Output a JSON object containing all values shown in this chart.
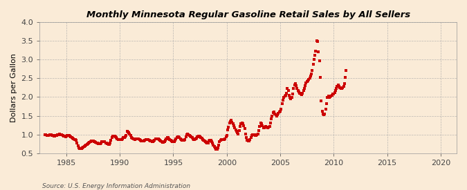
{
  "title": "Monthly Minnesota Regular Gasoline Retail Sales by All Sellers",
  "ylabel": "Dollars per Gallon",
  "source": "Source: U.S. Energy Information Administration",
  "background_color": "#faebd7",
  "dot_color": "#cc0000",
  "xlim": [
    1982.5,
    2021.5
  ],
  "ylim": [
    0.5,
    4.0
  ],
  "xticks": [
    1985,
    1990,
    1995,
    2000,
    2005,
    2010,
    2015,
    2020
  ],
  "yticks": [
    0.5,
    1.0,
    1.5,
    2.0,
    2.5,
    3.0,
    3.5,
    4.0
  ],
  "data": [
    [
      1983.0,
      1.0
    ],
    [
      1983.08,
      1.0
    ],
    [
      1983.17,
      0.98
    ],
    [
      1983.25,
      0.97
    ],
    [
      1983.33,
      0.97
    ],
    [
      1983.42,
      0.99
    ],
    [
      1983.5,
      1.0
    ],
    [
      1983.58,
      0.99
    ],
    [
      1983.67,
      0.98
    ],
    [
      1983.75,
      0.97
    ],
    [
      1983.83,
      0.96
    ],
    [
      1983.92,
      0.96
    ],
    [
      1984.0,
      0.97
    ],
    [
      1984.08,
      0.98
    ],
    [
      1984.17,
      0.99
    ],
    [
      1984.25,
      1.0
    ],
    [
      1984.33,
      1.01
    ],
    [
      1984.42,
      1.0
    ],
    [
      1984.5,
      0.99
    ],
    [
      1984.58,
      0.99
    ],
    [
      1984.67,
      0.97
    ],
    [
      1984.75,
      0.96
    ],
    [
      1984.83,
      0.95
    ],
    [
      1984.92,
      0.94
    ],
    [
      1985.0,
      0.95
    ],
    [
      1985.08,
      0.97
    ],
    [
      1985.17,
      0.98
    ],
    [
      1985.25,
      0.97
    ],
    [
      1985.33,
      0.96
    ],
    [
      1985.42,
      0.94
    ],
    [
      1985.5,
      0.92
    ],
    [
      1985.58,
      0.9
    ],
    [
      1985.67,
      0.88
    ],
    [
      1985.75,
      0.87
    ],
    [
      1985.83,
      0.86
    ],
    [
      1985.92,
      0.84
    ],
    [
      1986.0,
      0.78
    ],
    [
      1986.08,
      0.7
    ],
    [
      1986.17,
      0.65
    ],
    [
      1986.25,
      0.63
    ],
    [
      1986.33,
      0.62
    ],
    [
      1986.42,
      0.63
    ],
    [
      1986.5,
      0.64
    ],
    [
      1986.58,
      0.66
    ],
    [
      1986.67,
      0.68
    ],
    [
      1986.75,
      0.7
    ],
    [
      1986.83,
      0.72
    ],
    [
      1986.92,
      0.74
    ],
    [
      1987.0,
      0.75
    ],
    [
      1987.08,
      0.77
    ],
    [
      1987.17,
      0.79
    ],
    [
      1987.25,
      0.81
    ],
    [
      1987.33,
      0.82
    ],
    [
      1987.42,
      0.83
    ],
    [
      1987.5,
      0.82
    ],
    [
      1987.58,
      0.81
    ],
    [
      1987.67,
      0.8
    ],
    [
      1987.75,
      0.79
    ],
    [
      1987.83,
      0.78
    ],
    [
      1987.92,
      0.77
    ],
    [
      1988.0,
      0.76
    ],
    [
      1988.08,
      0.76
    ],
    [
      1988.17,
      0.76
    ],
    [
      1988.25,
      0.78
    ],
    [
      1988.33,
      0.8
    ],
    [
      1988.42,
      0.81
    ],
    [
      1988.5,
      0.81
    ],
    [
      1988.58,
      0.8
    ],
    [
      1988.67,
      0.78
    ],
    [
      1988.75,
      0.77
    ],
    [
      1988.83,
      0.75
    ],
    [
      1988.92,
      0.74
    ],
    [
      1989.0,
      0.74
    ],
    [
      1989.08,
      0.78
    ],
    [
      1989.17,
      0.85
    ],
    [
      1989.25,
      0.92
    ],
    [
      1989.33,
      0.95
    ],
    [
      1989.42,
      0.96
    ],
    [
      1989.5,
      0.95
    ],
    [
      1989.58,
      0.93
    ],
    [
      1989.67,
      0.91
    ],
    [
      1989.75,
      0.89
    ],
    [
      1989.83,
      0.87
    ],
    [
      1989.92,
      0.86
    ],
    [
      1990.0,
      0.86
    ],
    [
      1990.08,
      0.86
    ],
    [
      1990.17,
      0.87
    ],
    [
      1990.25,
      0.89
    ],
    [
      1990.33,
      0.91
    ],
    [
      1990.42,
      0.92
    ],
    [
      1990.5,
      0.94
    ],
    [
      1990.58,
      0.98
    ],
    [
      1990.67,
      1.08
    ],
    [
      1990.75,
      1.06
    ],
    [
      1990.83,
      1.04
    ],
    [
      1990.92,
      1.02
    ],
    [
      1991.0,
      0.97
    ],
    [
      1991.08,
      0.92
    ],
    [
      1991.17,
      0.9
    ],
    [
      1991.25,
      0.89
    ],
    [
      1991.33,
      0.88
    ],
    [
      1991.42,
      0.87
    ],
    [
      1991.5,
      0.88
    ],
    [
      1991.58,
      0.89
    ],
    [
      1991.67,
      0.89
    ],
    [
      1991.75,
      0.88
    ],
    [
      1991.83,
      0.87
    ],
    [
      1991.92,
      0.85
    ],
    [
      1992.0,
      0.83
    ],
    [
      1992.08,
      0.82
    ],
    [
      1992.17,
      0.82
    ],
    [
      1992.25,
      0.83
    ],
    [
      1992.33,
      0.85
    ],
    [
      1992.42,
      0.86
    ],
    [
      1992.5,
      0.87
    ],
    [
      1992.58,
      0.87
    ],
    [
      1992.67,
      0.86
    ],
    [
      1992.75,
      0.85
    ],
    [
      1992.83,
      0.83
    ],
    [
      1992.92,
      0.82
    ],
    [
      1993.0,
      0.8
    ],
    [
      1993.08,
      0.8
    ],
    [
      1993.17,
      0.82
    ],
    [
      1993.25,
      0.85
    ],
    [
      1993.33,
      0.88
    ],
    [
      1993.42,
      0.89
    ],
    [
      1993.5,
      0.89
    ],
    [
      1993.58,
      0.88
    ],
    [
      1993.67,
      0.86
    ],
    [
      1993.75,
      0.84
    ],
    [
      1993.83,
      0.82
    ],
    [
      1993.92,
      0.8
    ],
    [
      1994.0,
      0.79
    ],
    [
      1994.08,
      0.79
    ],
    [
      1994.17,
      0.8
    ],
    [
      1994.25,
      0.84
    ],
    [
      1994.33,
      0.88
    ],
    [
      1994.42,
      0.91
    ],
    [
      1994.5,
      0.91
    ],
    [
      1994.58,
      0.89
    ],
    [
      1994.67,
      0.87
    ],
    [
      1994.75,
      0.85
    ],
    [
      1994.83,
      0.82
    ],
    [
      1994.92,
      0.8
    ],
    [
      1995.0,
      0.8
    ],
    [
      1995.08,
      0.81
    ],
    [
      1995.17,
      0.84
    ],
    [
      1995.25,
      0.88
    ],
    [
      1995.33,
      0.92
    ],
    [
      1995.42,
      0.94
    ],
    [
      1995.5,
      0.93
    ],
    [
      1995.58,
      0.91
    ],
    [
      1995.67,
      0.89
    ],
    [
      1995.75,
      0.87
    ],
    [
      1995.83,
      0.85
    ],
    [
      1995.92,
      0.84
    ],
    [
      1996.0,
      0.84
    ],
    [
      1996.08,
      0.87
    ],
    [
      1996.17,
      0.93
    ],
    [
      1996.25,
      0.99
    ],
    [
      1996.33,
      1.02
    ],
    [
      1996.42,
      1.0
    ],
    [
      1996.5,
      0.97
    ],
    [
      1996.58,
      0.95
    ],
    [
      1996.67,
      0.93
    ],
    [
      1996.75,
      0.91
    ],
    [
      1996.83,
      0.89
    ],
    [
      1996.92,
      0.87
    ],
    [
      1997.0,
      0.87
    ],
    [
      1997.08,
      0.88
    ],
    [
      1997.17,
      0.9
    ],
    [
      1997.25,
      0.94
    ],
    [
      1997.33,
      0.96
    ],
    [
      1997.42,
      0.95
    ],
    [
      1997.5,
      0.94
    ],
    [
      1997.58,
      0.92
    ],
    [
      1997.67,
      0.9
    ],
    [
      1997.75,
      0.87
    ],
    [
      1997.83,
      0.85
    ],
    [
      1997.92,
      0.83
    ],
    [
      1998.0,
      0.81
    ],
    [
      1998.08,
      0.79
    ],
    [
      1998.17,
      0.78
    ],
    [
      1998.25,
      0.78
    ],
    [
      1998.33,
      0.82
    ],
    [
      1998.42,
      0.84
    ],
    [
      1998.5,
      0.84
    ],
    [
      1998.58,
      0.81
    ],
    [
      1998.67,
      0.77
    ],
    [
      1998.75,
      0.72
    ],
    [
      1998.83,
      0.68
    ],
    [
      1998.92,
      0.64
    ],
    [
      1999.0,
      0.61
    ],
    [
      1999.08,
      0.61
    ],
    [
      1999.17,
      0.65
    ],
    [
      1999.25,
      0.72
    ],
    [
      1999.33,
      0.8
    ],
    [
      1999.42,
      0.84
    ],
    [
      1999.5,
      0.86
    ],
    [
      1999.58,
      0.87
    ],
    [
      1999.67,
      0.87
    ],
    [
      1999.75,
      0.87
    ],
    [
      1999.83,
      0.89
    ],
    [
      1999.92,
      0.93
    ],
    [
      2000.0,
      0.98
    ],
    [
      2000.08,
      1.12
    ],
    [
      2000.17,
      1.2
    ],
    [
      2000.25,
      1.3
    ],
    [
      2000.33,
      1.35
    ],
    [
      2000.42,
      1.38
    ],
    [
      2000.5,
      1.33
    ],
    [
      2000.58,
      1.28
    ],
    [
      2000.67,
      1.23
    ],
    [
      2000.75,
      1.18
    ],
    [
      2000.83,
      1.12
    ],
    [
      2000.92,
      1.08
    ],
    [
      2001.0,
      1.05
    ],
    [
      2001.08,
      1.02
    ],
    [
      2001.17,
      1.1
    ],
    [
      2001.25,
      1.22
    ],
    [
      2001.33,
      1.28
    ],
    [
      2001.42,
      1.3
    ],
    [
      2001.5,
      1.28
    ],
    [
      2001.58,
      1.24
    ],
    [
      2001.67,
      1.16
    ],
    [
      2001.75,
      1.02
    ],
    [
      2001.83,
      0.92
    ],
    [
      2001.92,
      0.84
    ],
    [
      2002.0,
      0.82
    ],
    [
      2002.08,
      0.82
    ],
    [
      2002.17,
      0.86
    ],
    [
      2002.25,
      0.91
    ],
    [
      2002.33,
      0.98
    ],
    [
      2002.42,
      1.0
    ],
    [
      2002.5,
      1.0
    ],
    [
      2002.58,
      0.99
    ],
    [
      2002.67,
      0.98
    ],
    [
      2002.75,
      0.98
    ],
    [
      2002.83,
      0.99
    ],
    [
      2002.92,
      1.02
    ],
    [
      2003.0,
      1.1
    ],
    [
      2003.08,
      1.22
    ],
    [
      2003.17,
      1.3
    ],
    [
      2003.25,
      1.28
    ],
    [
      2003.33,
      1.24
    ],
    [
      2003.42,
      1.18
    ],
    [
      2003.5,
      1.18
    ],
    [
      2003.58,
      1.2
    ],
    [
      2003.67,
      1.22
    ],
    [
      2003.75,
      1.2
    ],
    [
      2003.83,
      1.18
    ],
    [
      2003.92,
      1.2
    ],
    [
      2004.0,
      1.22
    ],
    [
      2004.08,
      1.3
    ],
    [
      2004.17,
      1.42
    ],
    [
      2004.25,
      1.5
    ],
    [
      2004.33,
      1.58
    ],
    [
      2004.42,
      1.6
    ],
    [
      2004.5,
      1.55
    ],
    [
      2004.58,
      1.52
    ],
    [
      2004.67,
      1.5
    ],
    [
      2004.75,
      1.52
    ],
    [
      2004.83,
      1.56
    ],
    [
      2004.92,
      1.6
    ],
    [
      2005.0,
      1.62
    ],
    [
      2005.08,
      1.68
    ],
    [
      2005.17,
      1.82
    ],
    [
      2005.25,
      1.92
    ],
    [
      2005.33,
      1.98
    ],
    [
      2005.42,
      2.02
    ],
    [
      2005.5,
      2.05
    ],
    [
      2005.58,
      2.1
    ],
    [
      2005.67,
      2.22
    ],
    [
      2005.75,
      2.18
    ],
    [
      2005.83,
      2.05
    ],
    [
      2005.92,
      1.98
    ],
    [
      2006.0,
      1.95
    ],
    [
      2006.08,
      1.98
    ],
    [
      2006.17,
      2.08
    ],
    [
      2006.25,
      2.22
    ],
    [
      2006.33,
      2.32
    ],
    [
      2006.42,
      2.35
    ],
    [
      2006.5,
      2.3
    ],
    [
      2006.58,
      2.22
    ],
    [
      2006.67,
      2.18
    ],
    [
      2006.75,
      2.14
    ],
    [
      2006.83,
      2.1
    ],
    [
      2006.92,
      2.08
    ],
    [
      2007.0,
      2.06
    ],
    [
      2007.08,
      2.1
    ],
    [
      2007.17,
      2.18
    ],
    [
      2007.25,
      2.22
    ],
    [
      2007.33,
      2.3
    ],
    [
      2007.42,
      2.38
    ],
    [
      2007.5,
      2.42
    ],
    [
      2007.58,
      2.44
    ],
    [
      2007.67,
      2.46
    ],
    [
      2007.75,
      2.5
    ],
    [
      2007.83,
      2.56
    ],
    [
      2007.92,
      2.62
    ],
    [
      2008.0,
      2.7
    ],
    [
      2008.08,
      2.88
    ],
    [
      2008.17,
      3.0
    ],
    [
      2008.25,
      3.12
    ],
    [
      2008.33,
      3.22
    ],
    [
      2008.42,
      3.5
    ],
    [
      2008.5,
      3.48
    ],
    [
      2008.58,
      3.2
    ],
    [
      2008.67,
      2.96
    ],
    [
      2008.75,
      2.52
    ],
    [
      2008.83,
      1.9
    ],
    [
      2008.92,
      1.62
    ],
    [
      2009.0,
      1.55
    ],
    [
      2009.08,
      1.52
    ],
    [
      2009.17,
      1.55
    ],
    [
      2009.25,
      1.68
    ],
    [
      2009.33,
      1.82
    ],
    [
      2009.42,
      1.98
    ],
    [
      2009.5,
      2.02
    ],
    [
      2009.58,
      1.98
    ],
    [
      2009.67,
      2.0
    ],
    [
      2009.75,
      2.02
    ],
    [
      2009.83,
      2.05
    ],
    [
      2009.92,
      2.08
    ],
    [
      2010.0,
      2.08
    ],
    [
      2010.08,
      2.12
    ],
    [
      2010.17,
      2.18
    ],
    [
      2010.25,
      2.22
    ],
    [
      2010.33,
      2.28
    ],
    [
      2010.42,
      2.32
    ],
    [
      2010.5,
      2.28
    ],
    [
      2010.58,
      2.24
    ],
    [
      2010.67,
      2.22
    ],
    [
      2010.75,
      2.22
    ],
    [
      2010.83,
      2.25
    ],
    [
      2010.92,
      2.28
    ],
    [
      2011.0,
      2.35
    ],
    [
      2011.08,
      2.52
    ],
    [
      2011.17,
      2.7
    ]
  ]
}
